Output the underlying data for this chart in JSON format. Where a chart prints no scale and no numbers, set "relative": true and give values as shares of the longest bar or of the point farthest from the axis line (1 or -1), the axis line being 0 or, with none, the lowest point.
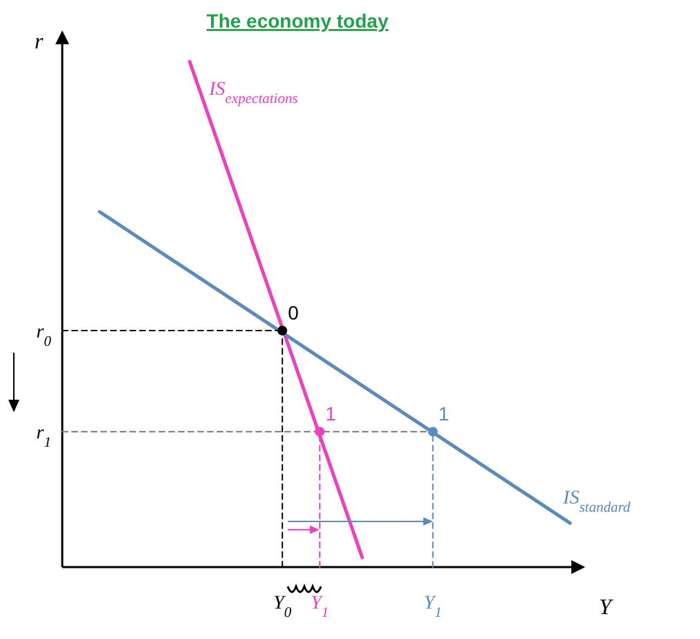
{
  "chart_data": {
    "type": "line",
    "title": "The economy today",
    "xlabel": "Y",
    "ylabel": "r",
    "relative": true,
    "xlim": [
      0,
      1
    ],
    "xticks": [
      {
        "value": 0.43,
        "label": "Y$_{0}$"
      },
      {
        "value": 0.503,
        "label": "Y$_{1}$"
      },
      {
        "value": 0.724,
        "label": "Y$_{1}$"
      }
    ],
    "series": [
      {
        "name": "IS$_{expectations}$",
        "color": "#ee3fbf",
        "x": [
          0.249,
          0.586
        ],
        "values": [
          1,
          0.019
        ]
      },
      {
        "name": "IS$_{standard}$",
        "color": "#5a8bbd",
        "x": [
          0.073,
          0.992
        ],
        "values": [
          0.703,
          0.087
        ]
      },
      {
        "color": "#000000",
        "line_style": "dashed",
        "x": [
          0,
          0.43
        ],
        "values": [
          0.468,
          0.468
        ]
      },
      {
        "color": "#000000",
        "line_style": "dashed",
        "x": [
          0.43,
          0.43
        ],
        "values": [
          0,
          0.468
        ]
      },
      {
        "color": "#777777",
        "line_style": "dashed",
        "x": [
          0,
          0.724
        ],
        "values": [
          0.268,
          0.268
        ]
      },
      {
        "color": "#ee3fbf",
        "line_style": "dashed",
        "x": [
          0.503,
          0.503
        ],
        "values": [
          0,
          0.268
        ]
      },
      {
        "color": "#5a8bbd",
        "line_style": "dashed",
        "x": [
          0.724,
          0.724
        ],
        "values": [
          0,
          0.268
        ]
      },
      {
        "type": "scatter",
        "marker": "circle",
        "color": "#000000",
        "x": [
          0.43
        ],
        "values": [
          0.468
        ]
      },
      {
        "type": "scatter",
        "marker": "circle",
        "color": "#ee3fbf",
        "x": [
          0.503
        ],
        "values": [
          0.268
        ]
      },
      {
        "type": "scatter",
        "marker": "circle",
        "color": "#5a8bbd",
        "x": [
          0.724
        ],
        "values": [
          0.268
        ]
      }
    ],
    "annotations": [
      {
        "text": "0",
        "x": 0.43,
        "y": 0.468
      },
      {
        "text": "1",
        "x": 0.503,
        "y": 0.268
      },
      {
        "text": "1",
        "x": 0.724,
        "y": 0.268
      },
      {
        "text": "r$_{0}$",
        "x": 0,
        "y": 0.468
      },
      {
        "text": "r$_{1}$",
        "x": 0,
        "y": 0.268
      }
    ]
  }
}
